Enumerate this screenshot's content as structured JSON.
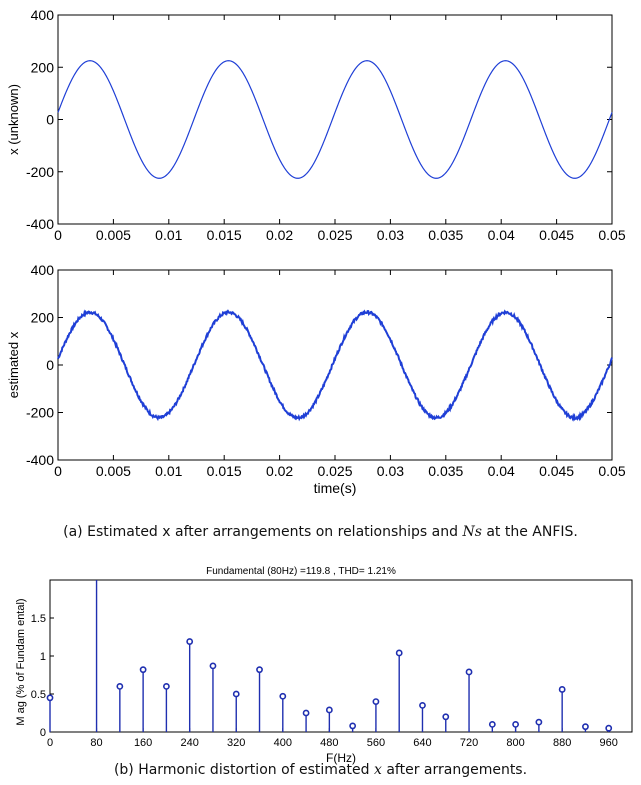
{
  "chart_data": [
    {
      "type": "line",
      "title": "",
      "xlabel": "",
      "ylabel": "x (unknown)",
      "xlim": [
        0,
        0.05
      ],
      "ylim": [
        -400,
        400
      ],
      "xticks": [
        "0",
        "0.005",
        "0.01",
        "0.015",
        "0.02",
        "0.025",
        "0.03",
        "0.035",
        "0.04",
        "0.045",
        "0.05"
      ],
      "yticks": [
        "400",
        "200",
        "0",
        "-200",
        "-400"
      ],
      "grid": false,
      "color": "#1f3fd6",
      "signal": {
        "shape": "sine",
        "amplitude": 225,
        "frequency_hz": 80,
        "phase_rad": 0.12,
        "noise": 0
      }
    },
    {
      "type": "line",
      "title": "",
      "xlabel": "time(s)",
      "ylabel": "estimated x",
      "xlim": [
        0,
        0.05
      ],
      "ylim": [
        -400,
        400
      ],
      "xticks": [
        "0",
        "0.005",
        "0.01",
        "0.015",
        "0.02",
        "0.025",
        "0.03",
        "0.035",
        "0.04",
        "0.045",
        "0.05"
      ],
      "yticks": [
        "400",
        "200",
        "0",
        "-200",
        "-400"
      ],
      "grid": false,
      "color": "#1f3fd6",
      "signal": {
        "shape": "sine",
        "amplitude": 222,
        "frequency_hz": 80,
        "phase_rad": 0.12,
        "noise": 6
      }
    },
    {
      "type": "bar",
      "title": "Fundamental (80Hz) =119.8 ,  THD= 1.21%",
      "xlabel": "F(Hz)",
      "ylabel": "M ag (% of Fundam ental)",
      "xlim": [
        0,
        1000
      ],
      "ylim": [
        0,
        2
      ],
      "xticks": [
        "0",
        "80",
        "160",
        "240",
        "320",
        "400",
        "480",
        "560",
        "640",
        "720",
        "800",
        "880",
        "960"
      ],
      "yticks": [
        "0",
        "0.5",
        "1",
        "1.5"
      ],
      "grid": false,
      "color": "#1f2fb0",
      "x": [
        0,
        80,
        120,
        160,
        200,
        240,
        280,
        320,
        360,
        400,
        440,
        480,
        520,
        560,
        600,
        640,
        680,
        720,
        760,
        800,
        840,
        880,
        920,
        960
      ],
      "values": [
        0.45,
        2.0,
        0.6,
        0.82,
        0.6,
        1.19,
        0.87,
        0.5,
        0.82,
        0.47,
        0.25,
        0.29,
        0.08,
        0.4,
        1.04,
        0.35,
        0.2,
        0.79,
        0.1,
        0.1,
        0.13,
        0.56,
        0.07,
        0.05
      ]
    }
  ],
  "captions": {
    "a_prefix": "(a) Estimated x after arrangements on relationships and",
    "a_math": "Ns",
    "a_suffix": "at the ANFIS.",
    "b_prefix": "(b) Harmonic distortion of estimated",
    "b_math": "x",
    "b_suffix": "after arrangements."
  }
}
